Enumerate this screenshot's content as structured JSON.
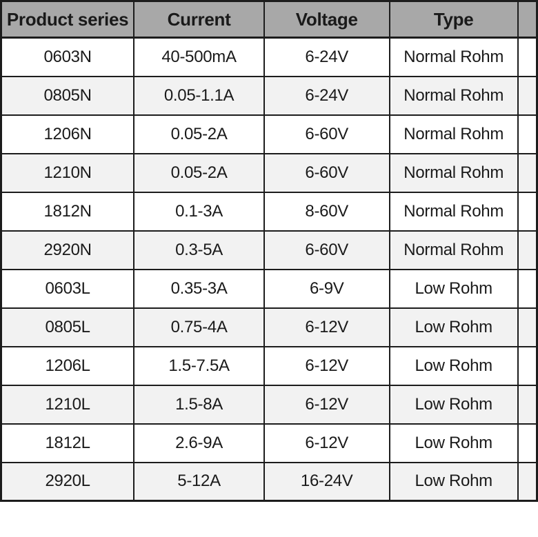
{
  "chart_data": {
    "type": "table",
    "title": "",
    "columns": [
      "Product series",
      "Current",
      "Voltage",
      "Type"
    ],
    "rows": [
      [
        "0603N",
        "40-500mA",
        "6-24V",
        "Normal Rohm"
      ],
      [
        "0805N",
        "0.05-1.1A",
        "6-24V",
        "Normal Rohm"
      ],
      [
        "1206N",
        "0.05-2A",
        "6-60V",
        "Normal Rohm"
      ],
      [
        "1210N",
        "0.05-2A",
        "6-60V",
        "Normal Rohm"
      ],
      [
        "1812N",
        "0.1-3A",
        "8-60V",
        "Normal Rohm"
      ],
      [
        "2920N",
        "0.3-5A",
        "6-60V",
        "Normal Rohm"
      ],
      [
        "0603L",
        "0.35-3A",
        "6-9V",
        "Low Rohm"
      ],
      [
        "0805L",
        "0.75-4A",
        "6-12V",
        "Low Rohm"
      ],
      [
        "1206L",
        "1.5-7.5A",
        "6-12V",
        "Low Rohm"
      ],
      [
        "1210L",
        "1.5-8A",
        "6-12V",
        "Low Rohm"
      ],
      [
        "1812L",
        "2.6-9A",
        "6-12V",
        "Low Rohm"
      ],
      [
        "2920L",
        "5-12A",
        "16-24V",
        "Low Rohm"
      ]
    ],
    "layout_hints": {
      "header_background": "#a8a8a8",
      "alternating_row_background": "#f2f2f2",
      "grid": "on",
      "right_edge_cut_off_column": true
    }
  },
  "colors": {
    "header_bg": "#a8a8a8",
    "row_alt_bg": "#f2f2f2",
    "row_bg": "#ffffff",
    "border": "#1c1c1c",
    "text": "#1a1a1a"
  }
}
